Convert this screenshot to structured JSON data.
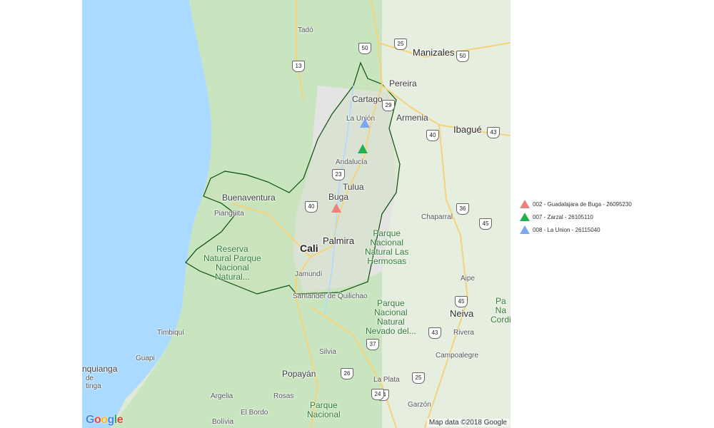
{
  "map": {
    "attribution": "Map data ©2018 Google",
    "logo": [
      "G",
      "o",
      "o",
      "g",
      "l",
      "e"
    ],
    "cities": [
      {
        "id": "manizales",
        "name": "Manizales",
        "cls": "mid"
      },
      {
        "id": "pereira",
        "name": "Pereira",
        "cls": ""
      },
      {
        "id": "cartago",
        "name": "Cartago",
        "cls": ""
      },
      {
        "id": "armenia",
        "name": "Armenia",
        "cls": ""
      },
      {
        "id": "ibague",
        "name": "Ibagué",
        "cls": "mid"
      },
      {
        "id": "la-union",
        "name": "La Unión",
        "cls": "small"
      },
      {
        "id": "andalucia",
        "name": "Andalucía",
        "cls": "small"
      },
      {
        "id": "tulua",
        "name": "Tulua",
        "cls": ""
      },
      {
        "id": "buga",
        "name": "Buga",
        "cls": ""
      },
      {
        "id": "buenaventura",
        "name": "Buenaventura",
        "cls": ""
      },
      {
        "id": "piangueta",
        "name": "Piangüita",
        "cls": "small"
      },
      {
        "id": "palmira",
        "name": "Palmira",
        "cls": "mid"
      },
      {
        "id": "cali",
        "name": "Cali",
        "cls": "big"
      },
      {
        "id": "jamundi",
        "name": "Jamundí",
        "cls": "small"
      },
      {
        "id": "quilichao",
        "name": "Santander de Quilichao",
        "cls": "small"
      },
      {
        "id": "chaparral",
        "name": "Chaparral",
        "cls": "small"
      },
      {
        "id": "aipe",
        "name": "Aipe",
        "cls": "small"
      },
      {
        "id": "neiva",
        "name": "Neiva",
        "cls": "mid"
      },
      {
        "id": "rivera",
        "name": "Rivera",
        "cls": "small"
      },
      {
        "id": "campoalegre",
        "name": "Campoalegre",
        "cls": "small"
      },
      {
        "id": "timbiqui",
        "name": "Timbiquí",
        "cls": "small"
      },
      {
        "id": "guapi",
        "name": "Guapi",
        "cls": "small"
      },
      {
        "id": "nquianga",
        "name": "nquianga",
        "cls": ""
      },
      {
        "id": "tinga",
        "name": "de\ntinga",
        "cls": "small"
      },
      {
        "id": "silvia",
        "name": "Silvia",
        "cls": "small"
      },
      {
        "id": "popayan",
        "name": "Popayán",
        "cls": ""
      },
      {
        "id": "la-plata",
        "name": "La Plata",
        "cls": "small"
      },
      {
        "id": "argelia",
        "name": "Argelia",
        "cls": "small"
      },
      {
        "id": "rosas",
        "name": "Rosas",
        "cls": "small"
      },
      {
        "id": "el-bordo",
        "name": "El Bordo",
        "cls": "small"
      },
      {
        "id": "garzon",
        "name": "Garzón",
        "cls": "small"
      },
      {
        "id": "tado",
        "name": "Tadó",
        "cls": "small"
      },
      {
        "id": "bolivia",
        "name": "Bolívia",
        "cls": "small"
      }
    ],
    "parks": [
      {
        "id": "park-hermosas",
        "name": "Parque\nNacional\nNatural Las\nHermosas"
      },
      {
        "id": "park-reserva",
        "name": "Reserva\nNatural Parque\nNacional\nNatural..."
      },
      {
        "id": "park-huila",
        "name": "Parque\nNacional\nNatural\nNevado del..."
      },
      {
        "id": "park-south",
        "name": "Parque\nNacional"
      },
      {
        "id": "park-cordillera",
        "name": "Pa\nNa\nCordi"
      }
    ],
    "shields": [
      "50",
      "25",
      "50",
      "13",
      "29",
      "40",
      "43",
      "23",
      "40",
      "36",
      "45",
      "45",
      "43",
      "37",
      "26",
      "24",
      "24",
      "25"
    ]
  },
  "legend": {
    "items": [
      {
        "label": "002 - Guadalajara de Buga - 26095230",
        "color": "#f08080"
      },
      {
        "label": "007 - Zarzal - 26105110",
        "color": "#22b14c"
      },
      {
        "label": "008 - La Union - 26115040",
        "color": "#7ea6f0"
      }
    ]
  },
  "markers": [
    {
      "name": "marker-buga",
      "color": "#f08080"
    },
    {
      "name": "marker-zarzal",
      "color": "#22b14c"
    },
    {
      "name": "marker-la-union",
      "color": "#7ea6f0"
    }
  ]
}
